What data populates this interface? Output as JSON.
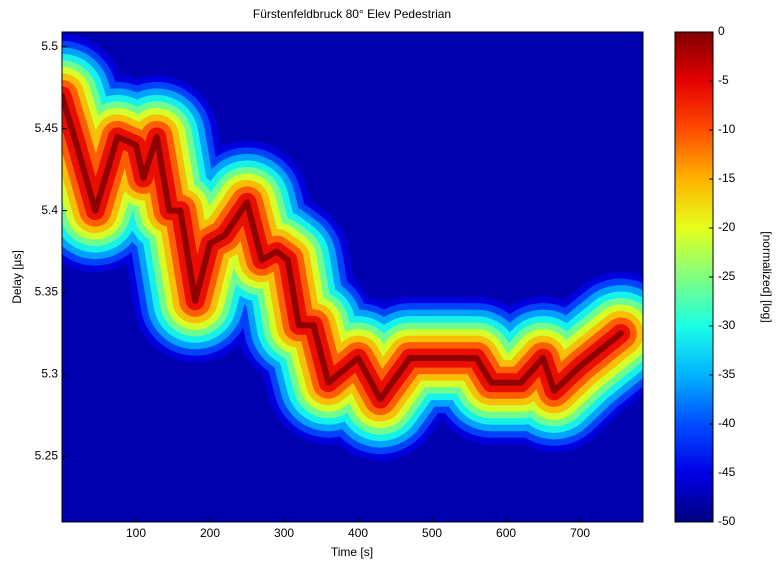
{
  "chart_data": {
    "type": "heatmap-ridge",
    "title": "Fürstenfeldbruck 80° Elev Pedestrian",
    "xlabel": "Time [s]",
    "ylabel": "Delay [µs]",
    "x": [
      0,
      20,
      45,
      75,
      100,
      110,
      128,
      145,
      160,
      180,
      200,
      220,
      250,
      270,
      290,
      305,
      320,
      340,
      360,
      400,
      430,
      470,
      560,
      580,
      620,
      650,
      665,
      700,
      755
    ],
    "values": [
      5.47,
      5.44,
      5.4,
      5.445,
      5.44,
      5.42,
      5.445,
      5.4,
      5.4,
      5.345,
      5.38,
      5.385,
      5.405,
      5.37,
      5.375,
      5.37,
      5.33,
      5.33,
      5.295,
      5.31,
      5.285,
      5.31,
      5.31,
      5.295,
      5.295,
      5.31,
      5.29,
      5.305,
      5.325
    ],
    "xlim": [
      0,
      785
    ],
    "xticks": [
      100,
      200,
      300,
      400,
      500,
      600,
      700
    ],
    "ylim": [
      5.21,
      5.509
    ],
    "yticks": [
      5.25,
      5.3,
      5.35,
      5.4,
      5.45,
      5.5
    ],
    "colormap": "jet",
    "background": "#0000b0",
    "clabel": "[normalized] [log]",
    "clim": [
      -50,
      0
    ],
    "cticks": [
      0,
      -5,
      -10,
      -15,
      -20,
      -25,
      -30,
      -35,
      -40,
      -45,
      -50
    ]
  }
}
